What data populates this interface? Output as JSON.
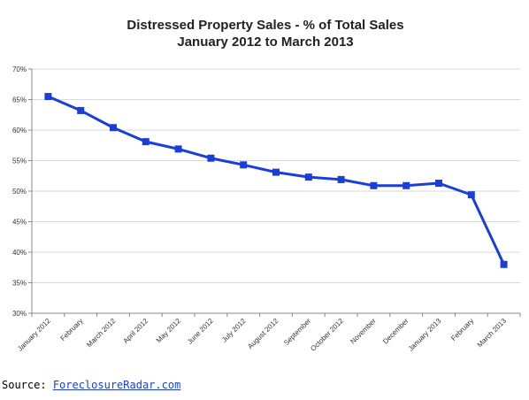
{
  "chart_data": {
    "type": "line",
    "title": "Distressed Property Sales - % of Total Sales",
    "subtitle": "January 2012 to March 2013",
    "categories": [
      "January 2012",
      "February",
      "March 2012",
      "April 2012",
      "May 2012",
      "June 2012",
      "July 2012",
      "August 2012",
      "September",
      "October 2012",
      "November",
      "December",
      "January 2013",
      "February",
      "March 2013"
    ],
    "series": [
      {
        "values": [
          65.5,
          63.2,
          60.4,
          58.1,
          56.9,
          55.4,
          54.3,
          53.1,
          52.3,
          51.9,
          50.9,
          50.9,
          51.3,
          49.4,
          38.0
        ]
      }
    ],
    "y_ticks": [
      "30%",
      "35%",
      "40%",
      "45%",
      "50%",
      "55%",
      "60%",
      "65%",
      "70%"
    ],
    "ylim": [
      30,
      70
    ],
    "y_unit": "%",
    "grid": "horizontal",
    "colors": {
      "line": "#1a3fd9",
      "grid": "#d9d9d9",
      "axis": "#888888"
    }
  },
  "source": {
    "label": "Source:",
    "link": "ForeclosureRadar.com"
  }
}
